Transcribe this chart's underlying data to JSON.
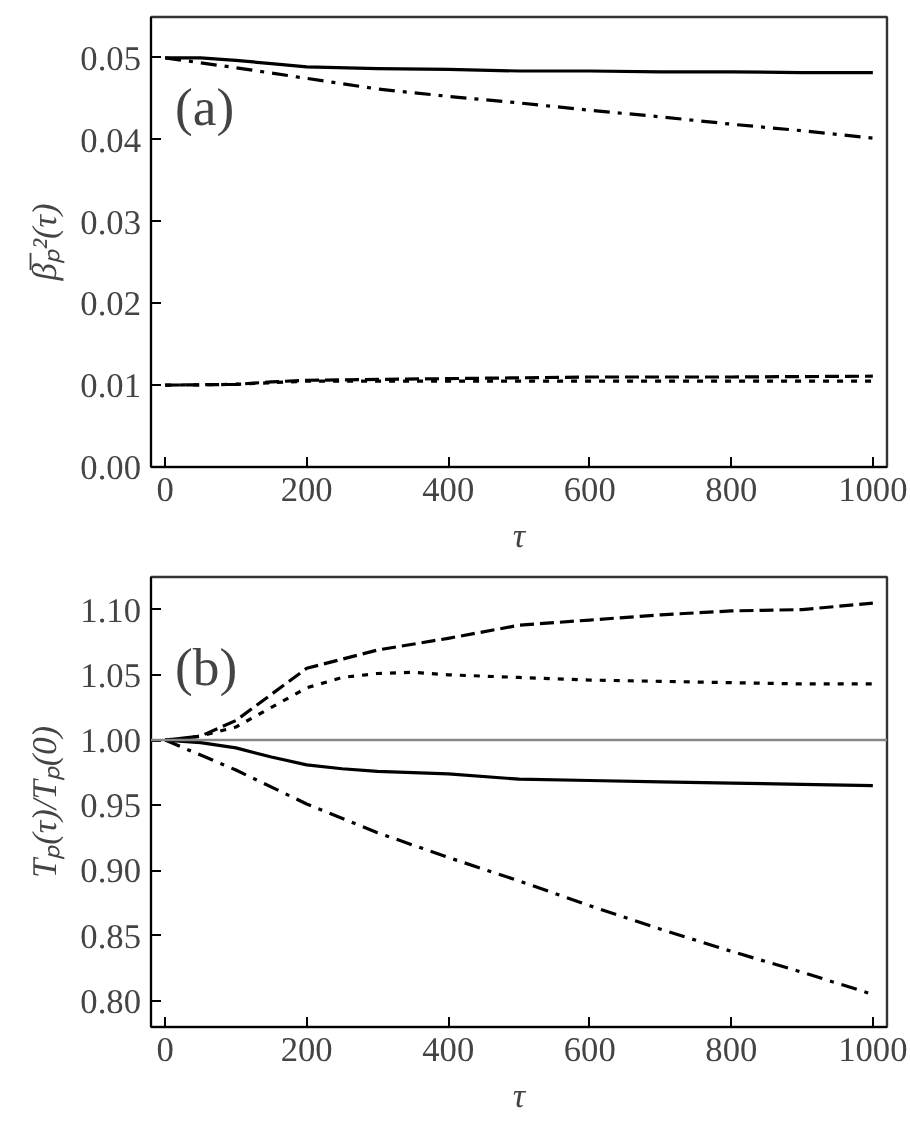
{
  "chart_data": [
    {
      "type": "line",
      "xlabel": "τ",
      "ylabel": "β̅ₚ²(τ)",
      "annotations": [
        "(a)"
      ],
      "xlim": [
        -20,
        1020
      ],
      "ylim": [
        0,
        0.055
      ],
      "xticks": [
        0,
        200,
        400,
        600,
        800,
        1000
      ],
      "yticks": [
        {
          "value": 0,
          "label": "0.00"
        },
        {
          "value": 0.01,
          "label": "0.01"
        },
        {
          "value": 0.02,
          "label": "0.02"
        },
        {
          "value": 0.03,
          "label": "0.03"
        },
        {
          "value": 0.04,
          "label": "0.04"
        },
        {
          "value": 0.05,
          "label": "0.05"
        }
      ],
      "grid": false,
      "series": [
        {
          "color": "#000000",
          "line_style": "solid",
          "x": [
            0,
            50,
            100,
            150,
            200,
            300,
            400,
            500,
            600,
            700,
            800,
            900,
            1000
          ],
          "values": [
            0.05,
            0.05,
            0.0497,
            0.0493,
            0.0489,
            0.0487,
            0.0486,
            0.0484,
            0.0484,
            0.0483,
            0.0483,
            0.0482,
            0.0482
          ]
        },
        {
          "color": "#000000",
          "line_style": "dashdot",
          "x": [
            0,
            100,
            200,
            300,
            400,
            500,
            600,
            700,
            800,
            900,
            1000
          ],
          "values": [
            0.05,
            0.0488,
            0.0475,
            0.0462,
            0.0453,
            0.0445,
            0.0436,
            0.0428,
            0.0419,
            0.0411,
            0.0402
          ]
        },
        {
          "color": "#000000",
          "line_style": "dashed",
          "x": [
            0,
            100,
            150,
            200,
            300,
            400,
            500,
            600,
            800,
            1000
          ],
          "values": [
            0.01,
            0.0101,
            0.0104,
            0.0106,
            0.0107,
            0.0108,
            0.0109,
            0.011,
            0.011,
            0.0111
          ]
        },
        {
          "color": "#000000",
          "line_style": "dotted",
          "x": [
            0,
            100,
            150,
            200,
            300,
            400,
            600,
            800,
            1000
          ],
          "values": [
            0.01,
            0.0101,
            0.0103,
            0.0105,
            0.0105,
            0.0105,
            0.0105,
            0.0105,
            0.0105
          ]
        }
      ]
    },
    {
      "type": "line",
      "xlabel": "τ",
      "ylabel": "Tₚ(τ)/Tₚ(0)",
      "annotations": [
        "(b)"
      ],
      "xlim": [
        -20,
        1020
      ],
      "ylim": [
        0.78,
        1.125
      ],
      "xticks": [
        0,
        200,
        400,
        600,
        800,
        1000
      ],
      "yticks": [
        {
          "value": 0.8,
          "label": "0.80"
        },
        {
          "value": 0.85,
          "label": "0.85"
        },
        {
          "value": 0.9,
          "label": "0.90"
        },
        {
          "value": 0.95,
          "label": "0.95"
        },
        {
          "value": 1.0,
          "label": "1.00"
        },
        {
          "value": 1.05,
          "label": "1.05"
        },
        {
          "value": 1.1,
          "label": "1.10"
        }
      ],
      "grid": false,
      "ref_lines": [
        {
          "axis": "y",
          "value": 1.0,
          "label": null,
          "color": "#888888",
          "line_style": "solid"
        }
      ],
      "series": [
        {
          "color": "#000000",
          "line_style": "dashed",
          "x": [
            0,
            50,
            100,
            150,
            200,
            250,
            300,
            400,
            500,
            600,
            700,
            800,
            900,
            1000
          ],
          "values": [
            1.0,
            1.003,
            1.015,
            1.035,
            1.055,
            1.062,
            1.069,
            1.078,
            1.088,
            1.092,
            1.096,
            1.099,
            1.1,
            1.105
          ]
        },
        {
          "color": "#000000",
          "line_style": "dotted",
          "x": [
            0,
            50,
            100,
            150,
            200,
            250,
            300,
            350,
            400,
            500,
            600,
            700,
            800,
            900,
            1000
          ],
          "values": [
            1.0,
            1.003,
            1.01,
            1.025,
            1.04,
            1.048,
            1.051,
            1.052,
            1.05,
            1.048,
            1.046,
            1.045,
            1.044,
            1.043,
            1.043
          ]
        },
        {
          "color": "#000000",
          "line_style": "solid",
          "x": [
            0,
            50,
            100,
            150,
            200,
            250,
            300,
            400,
            500,
            600,
            700,
            800,
            900,
            1000
          ],
          "values": [
            1.0,
            0.998,
            0.994,
            0.987,
            0.981,
            0.978,
            0.976,
            0.974,
            0.97,
            0.969,
            0.968,
            0.967,
            0.966,
            0.965
          ]
        },
        {
          "color": "#000000",
          "line_style": "dashdot",
          "x": [
            0,
            100,
            200,
            300,
            400,
            500,
            600,
            700,
            800,
            900,
            1000
          ],
          "values": [
            1.0,
            0.977,
            0.951,
            0.929,
            0.91,
            0.892,
            0.873,
            0.855,
            0.838,
            0.822,
            0.805
          ]
        }
      ]
    }
  ]
}
